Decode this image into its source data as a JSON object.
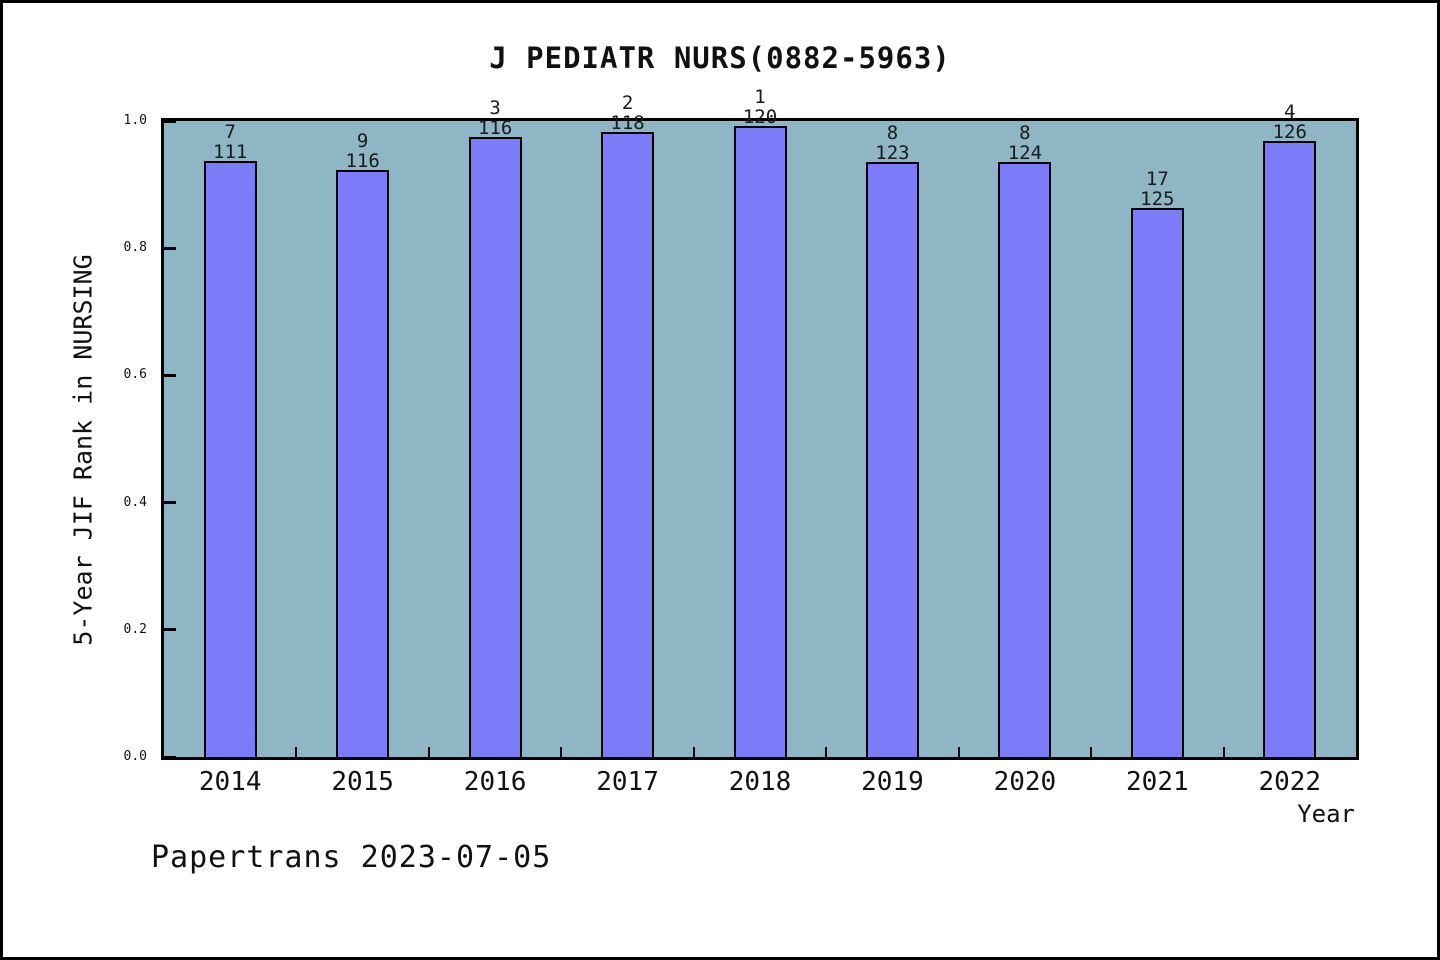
{
  "figure": {
    "footer": "Papertrans 2023-07-05"
  },
  "chart_data": {
    "type": "bar",
    "title": "J PEDIATR NURS(0882-5963)",
    "xlabel": "Year",
    "ylabel": "5-Year JIF Rank in NURSING",
    "ylim": [
      0.0,
      1.0
    ],
    "grid": false,
    "legend": "none",
    "categories": [
      "2014",
      "2015",
      "2016",
      "2017",
      "2018",
      "2019",
      "2020",
      "2021",
      "2022"
    ],
    "bars": [
      {
        "year": "2014",
        "rank": "7",
        "total": "111",
        "value": 0.9369
      },
      {
        "year": "2015",
        "rank": "9",
        "total": "116",
        "value": 0.9224
      },
      {
        "year": "2016",
        "rank": "3",
        "total": "116",
        "value": 0.9741
      },
      {
        "year": "2017",
        "rank": "2",
        "total": "118",
        "value": 0.9831
      },
      {
        "year": "2018",
        "rank": "1",
        "total": "120",
        "value": 0.9917
      },
      {
        "year": "2019",
        "rank": "8",
        "total": "123",
        "value": 0.935
      },
      {
        "year": "2020",
        "rank": "8",
        "total": "124",
        "value": 0.9355
      },
      {
        "year": "2021",
        "rank": "17",
        "total": "125",
        "value": 0.864
      },
      {
        "year": "2022",
        "rank": "4",
        "total": "126",
        "value": 0.9683
      }
    ],
    "yticks": [
      {
        "label": "0.0",
        "value": 0.0
      },
      {
        "label": "0.2",
        "value": 0.2
      },
      {
        "label": "0.4",
        "value": 0.4
      },
      {
        "label": "0.6",
        "value": 0.6
      },
      {
        "label": "0.8",
        "value": 0.8
      },
      {
        "label": "1.0",
        "value": 1.0
      }
    ],
    "colors": {
      "bar_fill": "#7C7CF8",
      "bar_border": "#000000",
      "plot_background": "#8EB6C4",
      "frame": "#000000",
      "text": "#111111"
    }
  }
}
